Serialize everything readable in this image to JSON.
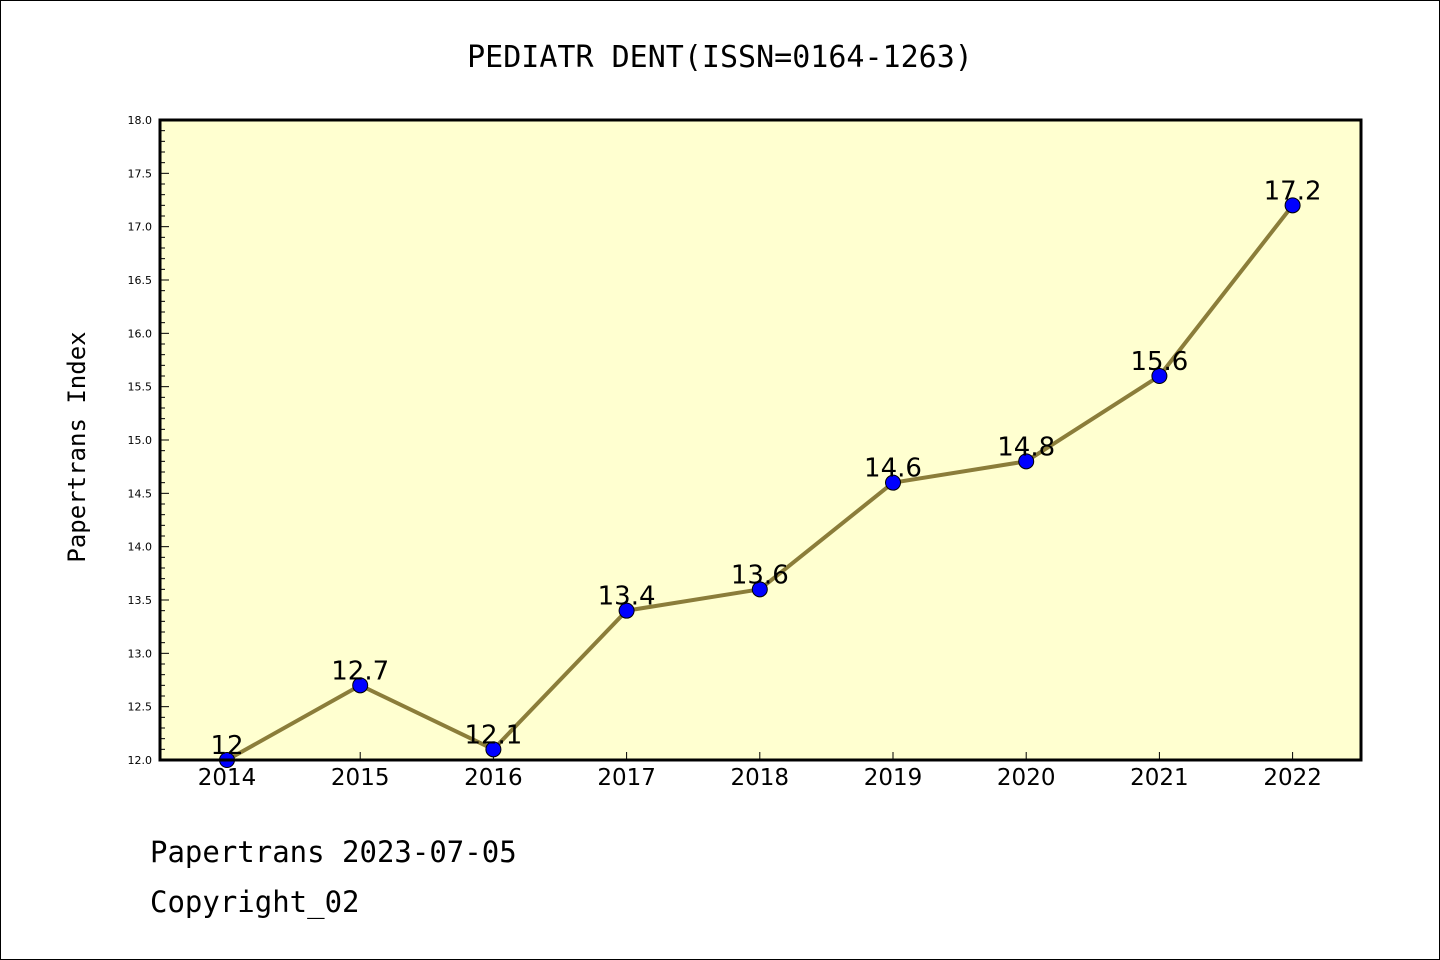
{
  "chart_data": {
    "type": "line",
    "title": "PEDIATR DENT(ISSN=0164-1263)",
    "xlabel": "",
    "ylabel": "Papertrans Index",
    "x": [
      "2014",
      "2015",
      "2016",
      "2017",
      "2018",
      "2019",
      "2020",
      "2021",
      "2022"
    ],
    "values": [
      12,
      12.7,
      12.1,
      13.4,
      13.6,
      14.6,
      14.8,
      15.6,
      17.2
    ],
    "data_labels": [
      "12",
      "12.7",
      "12.1",
      "13.4",
      "13.6",
      "14.6",
      "14.8",
      "15.6",
      "17.2"
    ],
    "ylim": [
      12.0,
      18.0
    ],
    "yticks": [
      "12.0",
      "12.5",
      "13.0",
      "13.5",
      "14.0",
      "14.5",
      "15.0",
      "15.5",
      "16.0",
      "16.5",
      "17.0",
      "17.5",
      "18.0"
    ],
    "grid": false,
    "colors": {
      "plot_background": "#ffffd0",
      "line": "#8b7d3a",
      "marker": "#0000ff"
    }
  },
  "footer": {
    "line1": "Papertrans 2023-07-05",
    "line2": "Copyright_02"
  }
}
